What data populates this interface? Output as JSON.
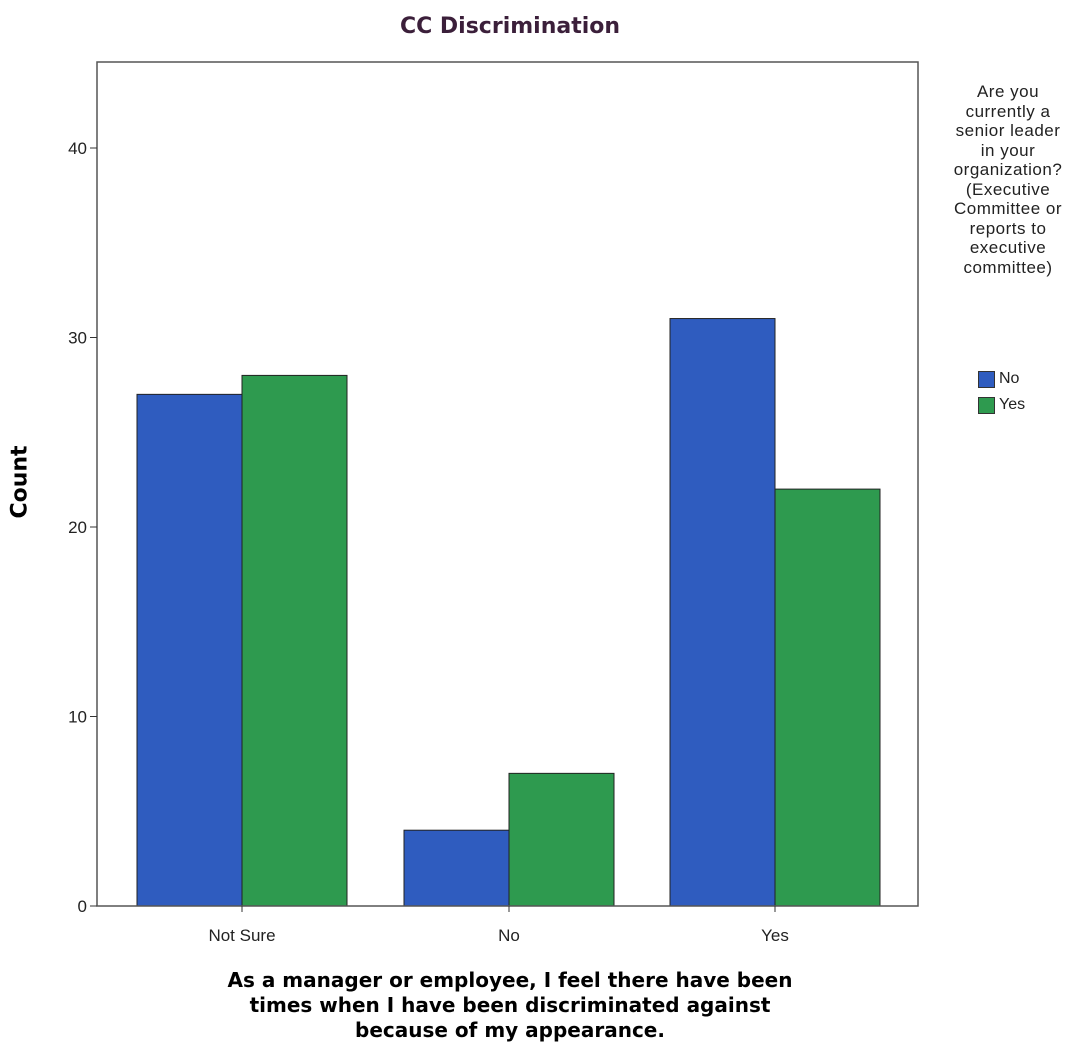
{
  "chart_data": {
    "type": "bar",
    "title": "CC Discrimination",
    "xlabel_lines": [
      "As a manager or employee, I feel there have been",
      "times when I have been discriminated against",
      "because of my appearance."
    ],
    "ylabel": "Count",
    "categories": [
      "Not Sure",
      "No",
      "Yes"
    ],
    "series": [
      {
        "name": "No",
        "color": "#2f5cbf",
        "values": [
          27,
          4,
          31
        ]
      },
      {
        "name": "Yes",
        "color": "#2e9a4f",
        "values": [
          28,
          7,
          22
        ]
      }
    ],
    "ylim": [
      0,
      40
    ],
    "yticks": [
      0,
      10,
      20,
      30,
      40
    ],
    "legend": {
      "title_lines": [
        "Are you",
        "currently a",
        "senior leader",
        "in your",
        "organization?",
        "(Executive",
        "Committee or",
        "reports to",
        "executive",
        "committee)"
      ],
      "placement": "right"
    },
    "grid": false
  }
}
